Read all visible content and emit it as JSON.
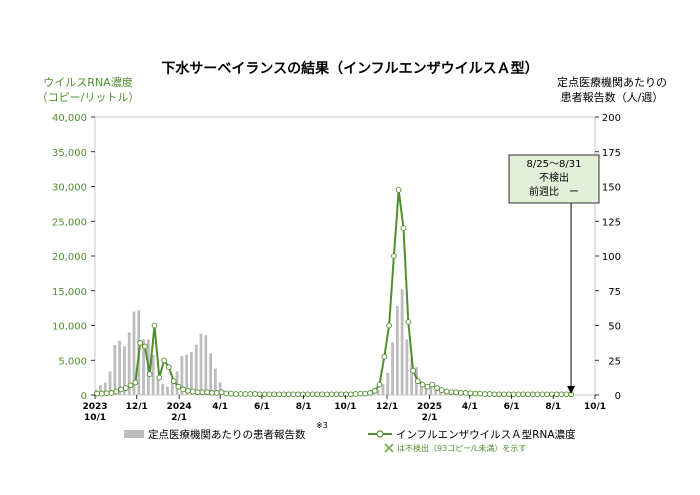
{
  "chart_data": {
    "type": "bar+line",
    "title": "下水サーベイランスの結果（インフルエンザウイルスＡ型）",
    "left_axis": {
      "label_line1": "ウイルスRNA濃度",
      "label_line2": "（コピー/リットル）",
      "ylim": [
        0,
        40000
      ],
      "ticks": [
        "0",
        "5,000",
        "10,000",
        "15,000",
        "20,000",
        "25,000",
        "30,000",
        "35,000",
        "40,000"
      ],
      "tick_values": [
        0,
        5000,
        10000,
        15000,
        20000,
        25000,
        30000,
        35000,
        40000
      ]
    },
    "right_axis": {
      "label_line1": "定点医療機関あたりの",
      "label_line2": "患者報告数（人/週）",
      "ylim": [
        0,
        200
      ],
      "ticks": [
        "0",
        "25",
        "50",
        "75",
        "100",
        "125",
        "150",
        "175",
        "200"
      ],
      "tick_values": [
        0,
        25,
        50,
        75,
        100,
        125,
        150,
        175,
        200
      ]
    },
    "x_axis": {
      "range": [
        "2023-10-01",
        "2025-10-01"
      ],
      "tick_labels": [
        {
          "date": "2023-10-01",
          "line1": "2023",
          "line2": "10/1"
        },
        {
          "date": "2023-12-01",
          "line1": "12/1",
          "line2": ""
        },
        {
          "date": "2024-02-01",
          "line1": "2024",
          "line2": "2/1"
        },
        {
          "date": "2024-04-01",
          "line1": "4/1",
          "line2": ""
        },
        {
          "date": "2024-06-01",
          "line1": "6/1",
          "line2": ""
        },
        {
          "date": "2024-08-01",
          "line1": "8/1",
          "line2": ""
        },
        {
          "date": "2024-10-01",
          "line1": "10/1",
          "line2": ""
        },
        {
          "date": "2024-12-01",
          "line1": "12/1",
          "line2": ""
        },
        {
          "date": "2025-02-01",
          "line1": "2025",
          "line2": "2/1"
        },
        {
          "date": "2025-04-01",
          "line1": "4/1",
          "line2": ""
        },
        {
          "date": "2025-06-01",
          "line1": "6/1",
          "line2": ""
        },
        {
          "date": "2025-08-01",
          "line1": "8/1",
          "line2": ""
        },
        {
          "date": "2025-10-01",
          "line1": "10/1",
          "line2": ""
        }
      ]
    },
    "series": [
      {
        "name": "定点医療機関あたりの患者報告数",
        "name_note": "※3",
        "axis": "right",
        "kind": "bar",
        "color": "#bdbdbd",
        "dates": [
          "2023-10-02",
          "2023-10-09",
          "2023-10-16",
          "2023-10-23",
          "2023-10-30",
          "2023-11-06",
          "2023-11-13",
          "2023-11-20",
          "2023-11-27",
          "2023-12-04",
          "2023-12-11",
          "2023-12-18",
          "2023-12-25",
          "2024-01-01",
          "2024-01-08",
          "2024-01-15",
          "2024-01-22",
          "2024-01-29",
          "2024-02-05",
          "2024-02-12",
          "2024-02-19",
          "2024-02-26",
          "2024-03-04",
          "2024-03-11",
          "2024-03-18",
          "2024-03-25",
          "2024-04-01",
          "2024-04-08",
          "2024-04-15",
          "2024-04-22",
          "2024-04-29",
          "2024-05-06",
          "2024-05-13",
          "2024-05-20",
          "2024-05-27",
          "2024-06-03",
          "2024-06-10",
          "2024-06-17",
          "2024-06-24",
          "2024-07-01",
          "2024-07-08",
          "2024-07-15",
          "2024-07-22",
          "2024-07-29",
          "2024-08-05",
          "2024-08-12",
          "2024-08-19",
          "2024-08-26",
          "2024-09-02",
          "2024-09-09",
          "2024-09-16",
          "2024-09-23",
          "2024-09-30",
          "2024-10-07",
          "2024-10-14",
          "2024-10-21",
          "2024-10-28",
          "2024-11-04",
          "2024-11-11",
          "2024-11-18",
          "2024-11-25",
          "2024-12-02",
          "2024-12-09",
          "2024-12-16",
          "2024-12-23",
          "2024-12-30",
          "2025-01-06",
          "2025-01-13",
          "2025-01-20",
          "2025-01-27",
          "2025-02-03",
          "2025-02-10",
          "2025-02-17",
          "2025-02-24",
          "2025-03-03",
          "2025-03-10",
          "2025-03-17",
          "2025-03-24",
          "2025-03-31",
          "2025-04-07",
          "2025-04-14",
          "2025-04-21",
          "2025-04-28",
          "2025-05-05",
          "2025-05-12",
          "2025-05-19",
          "2025-05-26",
          "2025-06-02",
          "2025-06-09",
          "2025-06-16",
          "2025-06-23",
          "2025-06-30",
          "2025-07-07",
          "2025-07-14",
          "2025-07-21",
          "2025-07-28",
          "2025-08-04",
          "2025-08-11",
          "2025-08-18",
          "2025-08-25"
        ],
        "values": [
          4,
          7,
          9,
          17,
          36,
          39,
          35,
          45,
          60,
          61,
          40,
          40,
          29,
          12,
          8,
          6,
          12,
          17,
          28,
          29,
          31,
          36,
          44,
          43,
          30,
          19,
          9,
          3,
          2,
          1,
          1,
          0.5,
          0.5,
          0.5,
          0.3,
          0.3,
          0.3,
          0.3,
          0.3,
          0.3,
          0.3,
          0.2,
          0.2,
          0.2,
          0.2,
          0.2,
          0.2,
          0.2,
          0.2,
          0.2,
          0.2,
          0.2,
          0.2,
          0.3,
          0.3,
          0.5,
          0.5,
          1,
          2,
          4,
          8,
          16,
          38,
          64,
          76,
          40,
          27,
          20,
          10,
          7,
          6,
          5,
          3,
          3,
          3,
          2,
          2,
          2,
          1.5,
          1.5,
          1.2,
          1,
          1,
          0.8,
          0.6,
          0.5,
          0.5,
          0.4,
          0.4,
          0.3,
          0.3,
          0.3,
          0.3,
          0.3,
          0.3,
          0.2,
          0.2,
          0.2,
          0.2,
          0.2
        ]
      },
      {
        "name": "インフルエンザウイルスＡ型RNA濃度",
        "axis": "left",
        "kind": "line",
        "color": "#4f8f2f",
        "dates": [
          "2023-10-04",
          "2023-10-11",
          "2023-10-18",
          "2023-10-25",
          "2023-11-01",
          "2023-11-08",
          "2023-11-15",
          "2023-11-22",
          "2023-11-29",
          "2023-12-06",
          "2023-12-13",
          "2023-12-20",
          "2023-12-27",
          "2024-01-03",
          "2024-01-10",
          "2024-01-17",
          "2024-01-24",
          "2024-01-31",
          "2024-02-07",
          "2024-02-14",
          "2024-02-21",
          "2024-02-28",
          "2024-03-06",
          "2024-03-13",
          "2024-03-20",
          "2024-03-27",
          "2024-04-03",
          "2024-04-10",
          "2024-04-17",
          "2024-04-24",
          "2024-05-01",
          "2024-05-08",
          "2024-05-15",
          "2024-05-22",
          "2024-05-29",
          "2024-06-05",
          "2024-06-12",
          "2024-06-19",
          "2024-06-26",
          "2024-07-03",
          "2024-07-10",
          "2024-07-17",
          "2024-07-24",
          "2024-07-31",
          "2024-08-07",
          "2024-08-14",
          "2024-08-21",
          "2024-08-28",
          "2024-09-04",
          "2024-09-11",
          "2024-09-18",
          "2024-09-25",
          "2024-10-02",
          "2024-10-09",
          "2024-10-16",
          "2024-10-23",
          "2024-10-30",
          "2024-11-06",
          "2024-11-13",
          "2024-11-20",
          "2024-11-27",
          "2024-12-04",
          "2024-12-11",
          "2024-12-18",
          "2024-12-25",
          "2025-01-01",
          "2025-01-08",
          "2025-01-15",
          "2025-01-22",
          "2025-01-29",
          "2025-02-05",
          "2025-02-12",
          "2025-02-19",
          "2025-02-26",
          "2025-03-05",
          "2025-03-12",
          "2025-03-19",
          "2025-03-26",
          "2025-04-02",
          "2025-04-09",
          "2025-04-16",
          "2025-04-23",
          "2025-04-30",
          "2025-05-07",
          "2025-05-14",
          "2025-05-21",
          "2025-05-28",
          "2025-06-04",
          "2025-06-11",
          "2025-06-18",
          "2025-06-25",
          "2025-07-02",
          "2025-07-09",
          "2025-07-16",
          "2025-07-23",
          "2025-07-30",
          "2025-08-06",
          "2025-08-13",
          "2025-08-20",
          "2025-08-27"
        ],
        "values": [
          200,
          200,
          250,
          300,
          500,
          800,
          1000,
          1400,
          1800,
          7500,
          7000,
          3000,
          10000,
          2500,
          5000,
          4000,
          2000,
          1200,
          800,
          600,
          500,
          400,
          400,
          400,
          300,
          300,
          400,
          250,
          200,
          150,
          150,
          150,
          150,
          150,
          100,
          100,
          100,
          100,
          100,
          100,
          100,
          100,
          100,
          100,
          100,
          100,
          100,
          100,
          100,
          100,
          100,
          100,
          100,
          100,
          150,
          200,
          200,
          300,
          600,
          1500,
          5500,
          10000,
          20000,
          29500,
          24000,
          10500,
          3500,
          2000,
          1500,
          1200,
          1500,
          1000,
          700,
          500,
          400,
          400,
          300,
          300,
          250,
          200,
          200,
          150,
          150,
          100,
          100,
          100,
          100,
          100,
          100,
          100,
          100,
          100,
          100,
          100,
          100,
          100,
          100,
          100,
          100,
          100
        ]
      }
    ],
    "non_detect_legend": "は不検出（93コピー/L未満）を示す",
    "annotation": {
      "line1": "8/25～8/31",
      "line2": "不検出",
      "line3": "前週比　ー",
      "arrow_date": "2025-08-27"
    },
    "grid": false,
    "legend_position": "bottom"
  }
}
